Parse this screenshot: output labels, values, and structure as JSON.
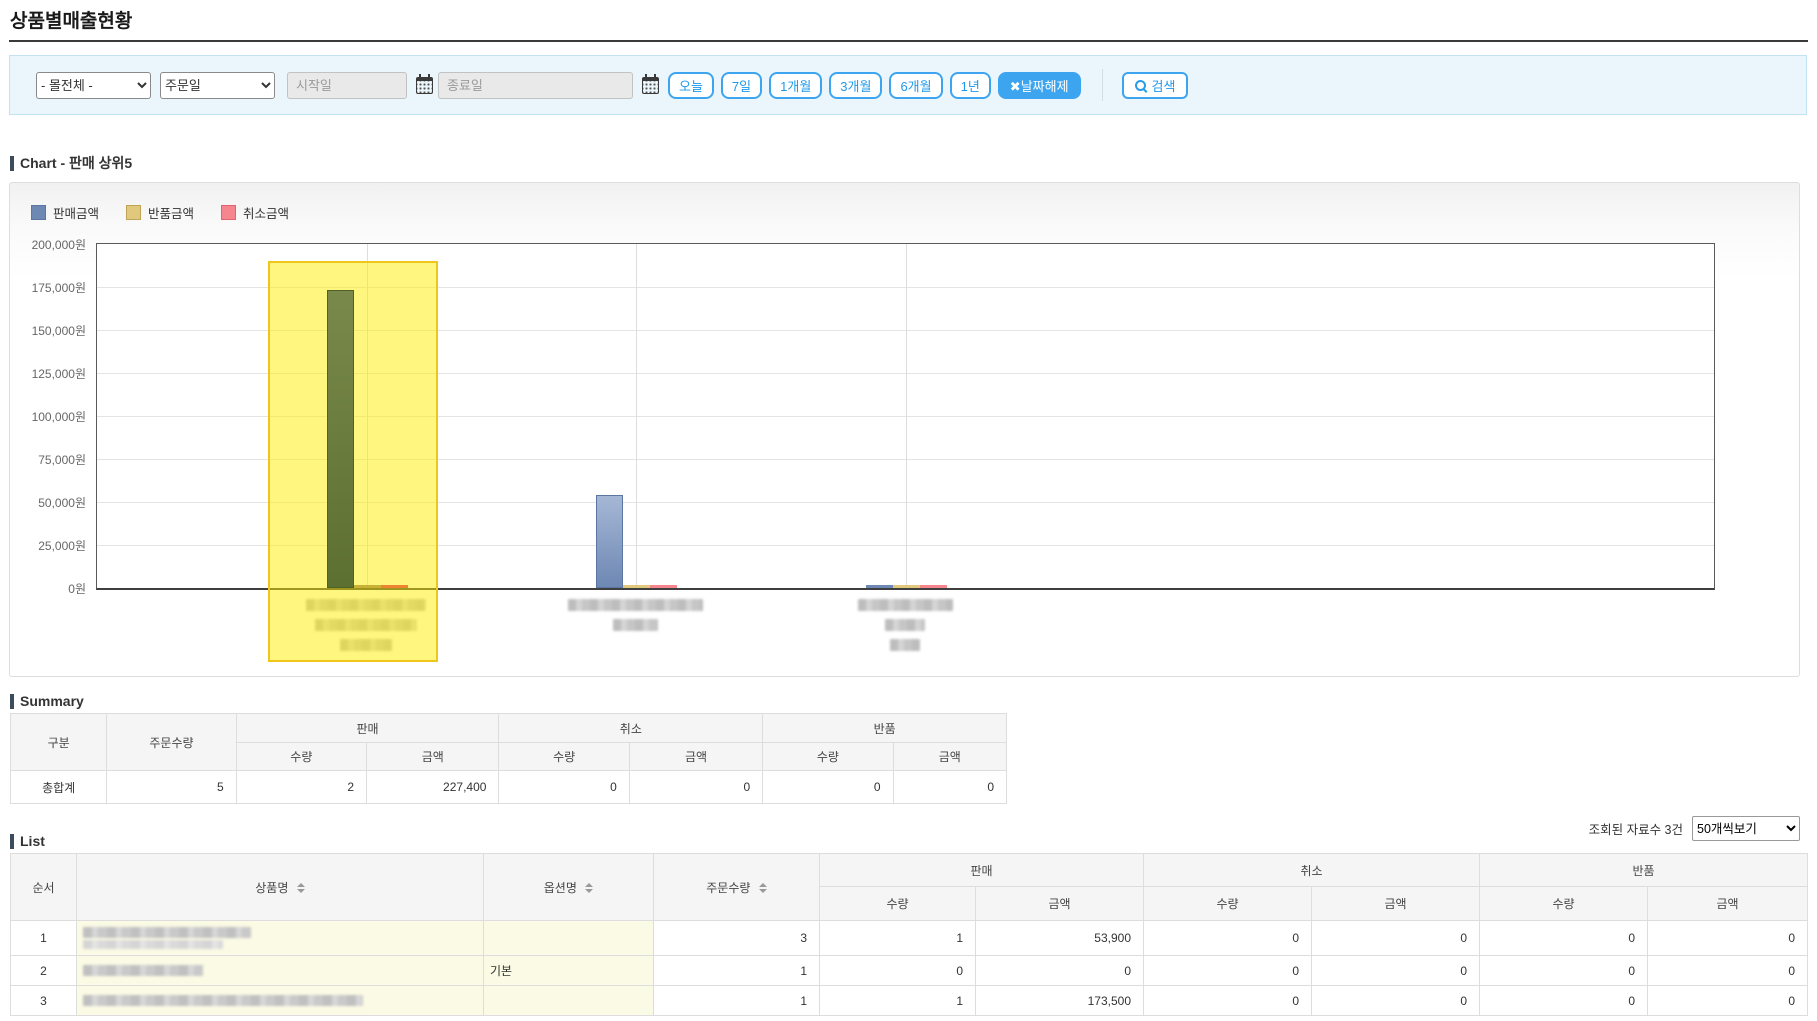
{
  "page": {
    "title": "상품별매출현황"
  },
  "filter": {
    "mall_select": "- 몰전체 -",
    "date_type_select": "주문일",
    "start_date_placeholder": "시작일",
    "end_date_placeholder": "종료일",
    "range_buttons": [
      "오늘",
      "7일",
      "1개월",
      "3개월",
      "6개월",
      "1년"
    ],
    "clear_date_button": "✖날짜해제",
    "search_button": "검색",
    "accent_color": "#3da5f0"
  },
  "chart_section": {
    "title": "Chart - 판매 상위5"
  },
  "chart_data": {
    "type": "bar",
    "categories": [
      "",
      "",
      ""
    ],
    "labels_blurred": true,
    "series": [
      {
        "name": "판매금액",
        "color": "#6e88b4",
        "border": "#5c76a4",
        "values": [
          173500,
          53900,
          0
        ]
      },
      {
        "name": "반품금액",
        "color": "#e0c97c",
        "border": "#bfa455",
        "values": [
          0,
          0,
          0
        ]
      },
      {
        "name": "취소금액",
        "color": "#f5868d",
        "border": "#e2646e",
        "values": [
          0,
          0,
          0
        ]
      }
    ],
    "ylim": [
      0,
      200000
    ],
    "ytick_step": 25000,
    "yticks": [
      "0원",
      "25,000원",
      "50,000원",
      "75,000원",
      "100,000원",
      "125,000원",
      "150,000원",
      "175,000원",
      "200,000원"
    ],
    "grid": true,
    "legend_position": "top-left",
    "highlighted_category_index": 0,
    "highlight_color": "#ffee00"
  },
  "summary": {
    "title": "Summary",
    "headers": {
      "category": "구분",
      "order_qty": "주문수량",
      "sales": "판매",
      "cancel": "취소",
      "returns": "반품",
      "qty": "수량",
      "amount": "금액"
    },
    "total_row": {
      "label": "총합계",
      "order_qty": "5",
      "sales_qty": "2",
      "sales_amount": "227,400",
      "cancel_qty": "0",
      "cancel_amount": "0",
      "return_qty": "0",
      "return_amount": "0"
    }
  },
  "list": {
    "title": "List",
    "result_count_text": "조회된 자료수 3건",
    "page_size_select": "50개씩보기",
    "headers": {
      "no": "순서",
      "product": "상품명",
      "option": "옵션명",
      "order_qty": "주문수량",
      "sales": "판매",
      "cancel": "취소",
      "returns": "반품",
      "qty": "수량",
      "amount": "금액"
    },
    "rows": [
      {
        "no": "1",
        "product": "",
        "product_blurred": true,
        "option": "",
        "order_qty": "3",
        "sales_qty": "1",
        "sales_amount": "53,900",
        "cancel_qty": "0",
        "cancel_amount": "0",
        "return_qty": "0",
        "return_amount": "0"
      },
      {
        "no": "2",
        "product": "",
        "product_blurred": true,
        "option": "기본",
        "order_qty": "1",
        "sales_qty": "0",
        "sales_amount": "0",
        "cancel_qty": "0",
        "cancel_amount": "0",
        "return_qty": "0",
        "return_amount": "0"
      },
      {
        "no": "3",
        "product": "",
        "product_blurred": true,
        "option": "",
        "order_qty": "1",
        "sales_qty": "1",
        "sales_amount": "173,500",
        "cancel_qty": "0",
        "cancel_amount": "0",
        "return_qty": "0",
        "return_amount": "0"
      }
    ]
  }
}
